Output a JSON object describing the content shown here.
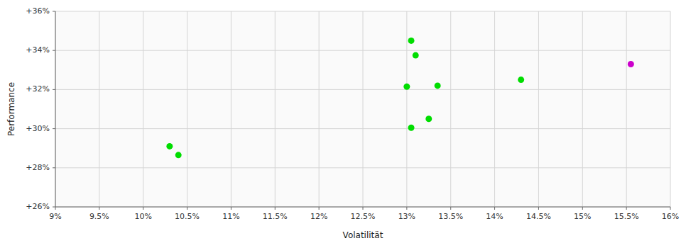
{
  "chart_data": {
    "type": "scatter",
    "xlabel": "Volatilität",
    "ylabel": "Performance",
    "series": [
      {
        "color": "#00dd00",
        "x": [
          10.3,
          10.4,
          13.05,
          13.1,
          13.0,
          13.35,
          13.05,
          13.25,
          14.3
        ],
        "values": [
          29.1,
          28.65,
          34.5,
          33.75,
          32.15,
          32.2,
          30.05,
          30.5,
          32.5
        ]
      },
      {
        "color": "#cc00cc",
        "x": [
          15.55
        ],
        "values": [
          33.3
        ]
      }
    ],
    "xlim": [
      9.0,
      16.0
    ],
    "ylim": [
      26.0,
      36.0
    ],
    "xticks": [
      {
        "value": 9.0,
        "label": "9%"
      },
      {
        "value": 9.5,
        "label": "9.5%"
      },
      {
        "value": 10.0,
        "label": "10%"
      },
      {
        "value": 10.5,
        "label": "10.5%"
      },
      {
        "value": 11.0,
        "label": "11%"
      },
      {
        "value": 11.5,
        "label": "11.5%"
      },
      {
        "value": 12.0,
        "label": "12%"
      },
      {
        "value": 12.5,
        "label": "12.5%"
      },
      {
        "value": 13.0,
        "label": "13%"
      },
      {
        "value": 13.5,
        "label": "13.5%"
      },
      {
        "value": 14.0,
        "label": "14%"
      },
      {
        "value": 14.5,
        "label": "14.5%"
      },
      {
        "value": 15.0,
        "label": "15%"
      },
      {
        "value": 15.5,
        "label": "15.5%"
      },
      {
        "value": 16.0,
        "label": "16%"
      }
    ],
    "yticks": [
      {
        "value": 26.0,
        "label": "+26%"
      },
      {
        "value": 28.0,
        "label": "+28%"
      },
      {
        "value": 30.0,
        "label": "+30%"
      },
      {
        "value": 32.0,
        "label": "+32%"
      },
      {
        "value": 34.0,
        "label": "+34%"
      },
      {
        "value": 36.0,
        "label": "+36%"
      }
    ],
    "grid": true
  }
}
